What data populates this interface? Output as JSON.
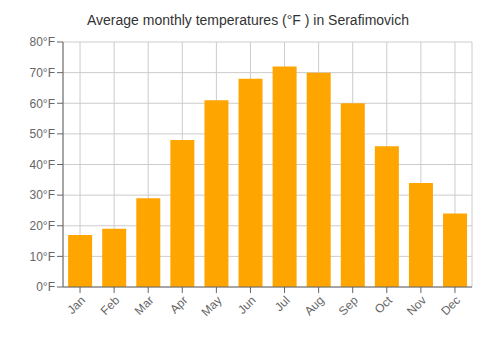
{
  "chart_data": {
    "type": "bar",
    "title": "Average monthly temperatures (°F ) in Serafimovich",
    "categories": [
      "Jan",
      "Feb",
      "Mar",
      "Apr",
      "May",
      "Jun",
      "Jul",
      "Aug",
      "Sep",
      "Oct",
      "Nov",
      "Dec"
    ],
    "values": [
      17,
      19,
      29,
      48,
      61,
      68,
      72,
      70,
      60,
      46,
      34,
      24
    ],
    "color": "#FFA500",
    "ylim": [
      0,
      80
    ],
    "yticks": [
      {
        "value": 0,
        "label": "0°F"
      },
      {
        "value": 10,
        "label": "10°F"
      },
      {
        "value": 20,
        "label": "20°F"
      },
      {
        "value": 30,
        "label": "30°F"
      },
      {
        "value": 40,
        "label": "40°F"
      },
      {
        "value": 50,
        "label": "50°F"
      },
      {
        "value": 60,
        "label": "60°F"
      },
      {
        "value": 70,
        "label": "70°F"
      },
      {
        "value": 80,
        "label": "80°F"
      }
    ],
    "grid": true
  }
}
